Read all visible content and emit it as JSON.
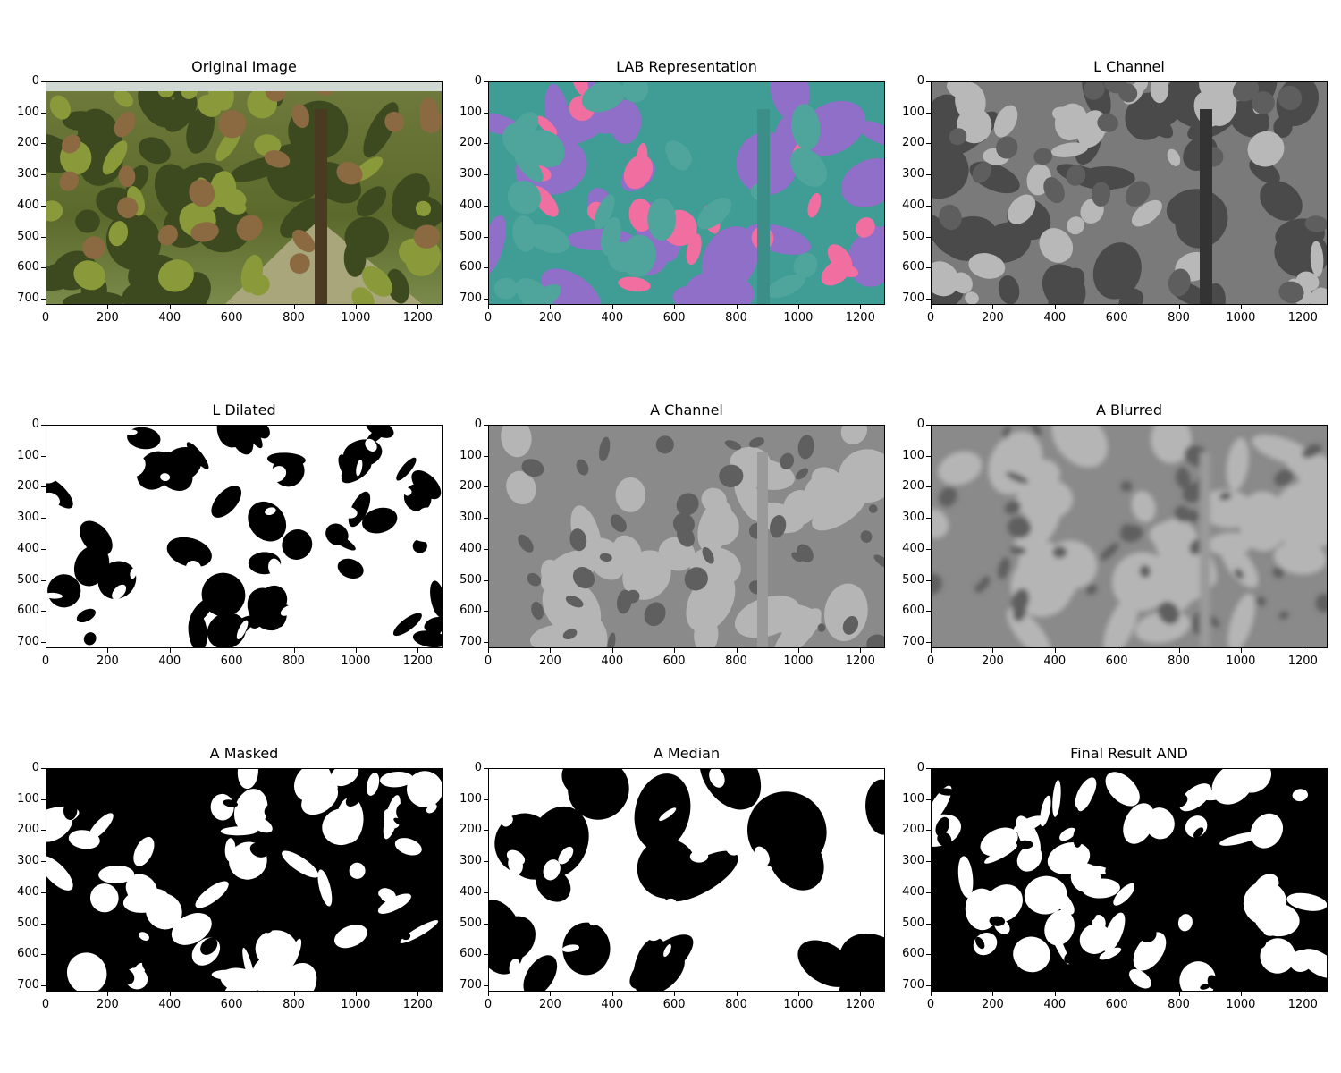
{
  "figure": {
    "panels": [
      {
        "id": "original",
        "title": "Original Image",
        "kind": "photo"
      },
      {
        "id": "lab",
        "title": "LAB Representation",
        "kind": "lab"
      },
      {
        "id": "l-channel",
        "title": "L Channel",
        "kind": "gray"
      },
      {
        "id": "l-dilated",
        "title": "L Dilated",
        "kind": "binary-a"
      },
      {
        "id": "a-channel",
        "title": "A Channel",
        "kind": "gray-soft"
      },
      {
        "id": "a-blurred",
        "title": "A Blurred",
        "kind": "gray-blur"
      },
      {
        "id": "a-masked",
        "title": "A Masked",
        "kind": "binary-b"
      },
      {
        "id": "a-median",
        "title": "A Median",
        "kind": "binary-c"
      },
      {
        "id": "final-and",
        "title": "Final Result AND",
        "kind": "binary-d"
      }
    ],
    "x_ticks": [
      "0",
      "200",
      "400",
      "600",
      "800",
      "1000",
      "1200"
    ],
    "y_ticks": [
      "0",
      "100",
      "200",
      "300",
      "400",
      "500",
      "600",
      "700"
    ],
    "image_extent": {
      "width": 1280,
      "height": 720
    },
    "colors": {
      "background": "#ffffff",
      "axis": "#000000",
      "leaf_dark": "#3d4a1f",
      "leaf_light": "#8a9a3a",
      "kiwi_brown": "#8b6a42",
      "lab_teal": "#3f9d96",
      "lab_purple": "#8f6fc8",
      "lab_pink": "#f06fa0"
    }
  }
}
